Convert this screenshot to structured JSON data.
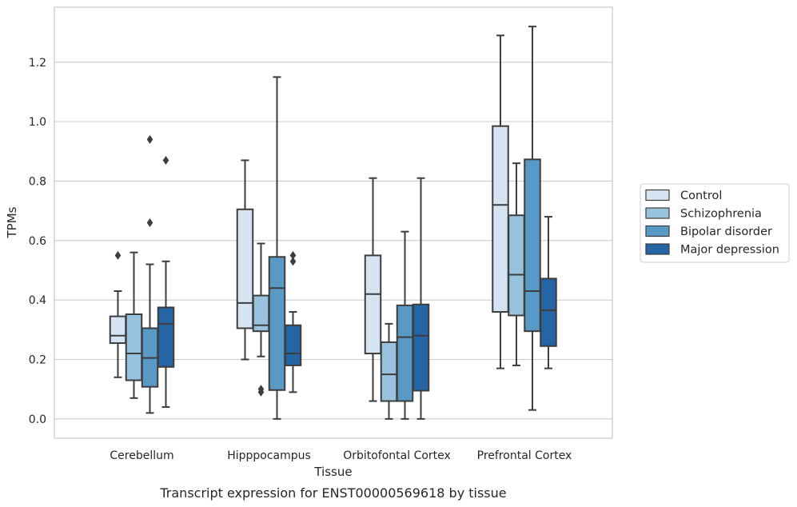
{
  "chart_data": {
    "type": "box",
    "title": "",
    "caption": "Transcript expression for ENST00000569618 by tissue",
    "xlabel": "Tissue",
    "ylabel": "TPMs",
    "ylim": [
      -0.065,
      1.385
    ],
    "yticks": [
      0.0,
      0.2,
      0.4,
      0.6,
      0.8,
      1.0,
      1.2
    ],
    "ytick_labels": [
      "0.0",
      "0.2",
      "0.4",
      "0.6",
      "0.8",
      "1.0",
      "1.2"
    ],
    "grid": "horizontal",
    "legend_position": "right",
    "categories": [
      "Cerebellum",
      "Hipppocampus",
      "Orbitofontal Cortex",
      "Prefrontal Cortex"
    ],
    "series": [
      {
        "name": "Control",
        "color": "#d5e4f3",
        "boxes": [
          {
            "whisker_low": 0.14,
            "q1": 0.255,
            "median": 0.28,
            "q3": 0.345,
            "whisker_high": 0.43,
            "outliers": [
              0.55
            ]
          },
          {
            "whisker_low": 0.2,
            "q1": 0.305,
            "median": 0.39,
            "q3": 0.705,
            "whisker_high": 0.87,
            "outliers": []
          },
          {
            "whisker_low": 0.06,
            "q1": 0.22,
            "median": 0.42,
            "q3": 0.55,
            "whisker_high": 0.81,
            "outliers": []
          },
          {
            "whisker_low": 0.17,
            "q1": 0.36,
            "median": 0.72,
            "q3": 0.985,
            "whisker_high": 1.29,
            "outliers": []
          }
        ]
      },
      {
        "name": "Schizophrenia",
        "color": "#98c2de",
        "boxes": [
          {
            "whisker_low": 0.07,
            "q1": 0.13,
            "median": 0.22,
            "q3": 0.352,
            "whisker_high": 0.56,
            "outliers": []
          },
          {
            "whisker_low": 0.21,
            "q1": 0.295,
            "median": 0.315,
            "q3": 0.415,
            "whisker_high": 0.59,
            "outliers": [
              0.09,
              0.1
            ]
          },
          {
            "whisker_low": 0.0,
            "q1": 0.06,
            "median": 0.15,
            "q3": 0.258,
            "whisker_high": 0.32,
            "outliers": []
          },
          {
            "whisker_low": 0.18,
            "q1": 0.348,
            "median": 0.485,
            "q3": 0.685,
            "whisker_high": 0.86,
            "outliers": []
          }
        ]
      },
      {
        "name": "Bipolar disorder",
        "color": "#5899c5",
        "boxes": [
          {
            "whisker_low": 0.02,
            "q1": 0.108,
            "median": 0.205,
            "q3": 0.305,
            "whisker_high": 0.52,
            "outliers": [
              0.66,
              0.94
            ]
          },
          {
            "whisker_low": 0.0,
            "q1": 0.097,
            "median": 0.44,
            "q3": 0.545,
            "whisker_high": 1.15,
            "outliers": []
          },
          {
            "whisker_low": 0.0,
            "q1": 0.06,
            "median": 0.275,
            "q3": 0.382,
            "whisker_high": 0.63,
            "outliers": []
          },
          {
            "whisker_low": 0.03,
            "q1": 0.295,
            "median": 0.43,
            "q3": 0.873,
            "whisker_high": 1.32,
            "outliers": []
          }
        ]
      },
      {
        "name": "Major depression",
        "color": "#2565a6",
        "boxes": [
          {
            "whisker_low": 0.04,
            "q1": 0.175,
            "median": 0.32,
            "q3": 0.375,
            "whisker_high": 0.53,
            "outliers": [
              0.87
            ]
          },
          {
            "whisker_low": 0.09,
            "q1": 0.18,
            "median": 0.22,
            "q3": 0.315,
            "whisker_high": 0.36,
            "outliers": [
              0.53,
              0.55
            ]
          },
          {
            "whisker_low": 0.0,
            "q1": 0.095,
            "median": 0.28,
            "q3": 0.385,
            "whisker_high": 0.81,
            "outliers": []
          },
          {
            "whisker_low": 0.17,
            "q1": 0.245,
            "median": 0.365,
            "q3": 0.472,
            "whisker_high": 0.68,
            "outliers": []
          }
        ]
      }
    ]
  }
}
